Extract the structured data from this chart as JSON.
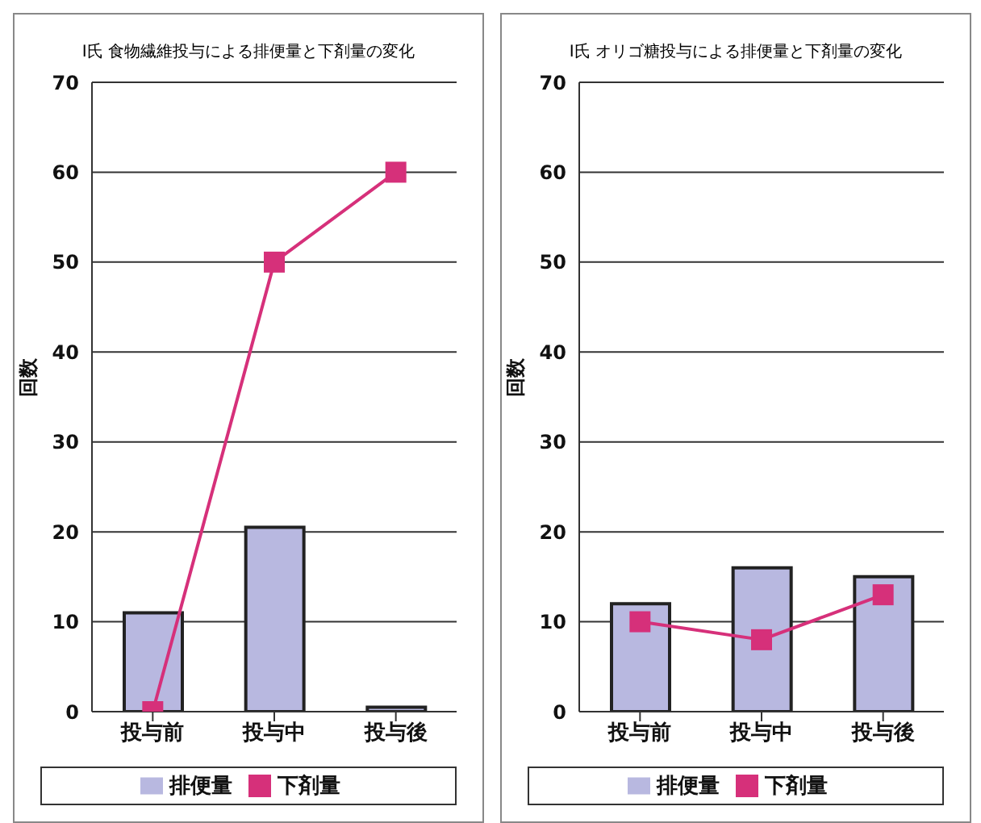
{
  "chart_data": [
    {
      "type": "bar",
      "title": "I氏 食物繊維投与による排便量と下剤量の変化",
      "ylabel": "回数",
      "categories": [
        "投与前",
        "投与中",
        "投与後"
      ],
      "ylim": [
        0,
        70
      ],
      "yticks": [
        0,
        10,
        20,
        30,
        40,
        50,
        60,
        70
      ],
      "grid": "y",
      "legend": "bottom",
      "series": [
        {
          "name": "排便量",
          "color": "#b8b8e0",
          "values": [
            11,
            20.5,
            0.5
          ]
        },
        {
          "name": "下剤量",
          "type": "line",
          "color": "#d6307a",
          "marker": "square",
          "values": [
            0,
            50,
            60
          ]
        }
      ]
    },
    {
      "type": "bar",
      "title": "I氏 オリゴ糖投与による排便量と下剤量の変化",
      "ylabel": "回数",
      "categories": [
        "投与前",
        "投与中",
        "投与後"
      ],
      "ylim": [
        0,
        70
      ],
      "yticks": [
        0,
        10,
        20,
        30,
        40,
        50,
        60,
        70
      ],
      "grid": "y",
      "legend": "bottom",
      "series": [
        {
          "name": "排便量",
          "color": "#b8b8e0",
          "values": [
            12,
            16,
            15
          ]
        },
        {
          "name": "下剤量",
          "type": "line",
          "color": "#d6307a",
          "marker": "square",
          "values": [
            10,
            8,
            13
          ]
        }
      ]
    }
  ]
}
